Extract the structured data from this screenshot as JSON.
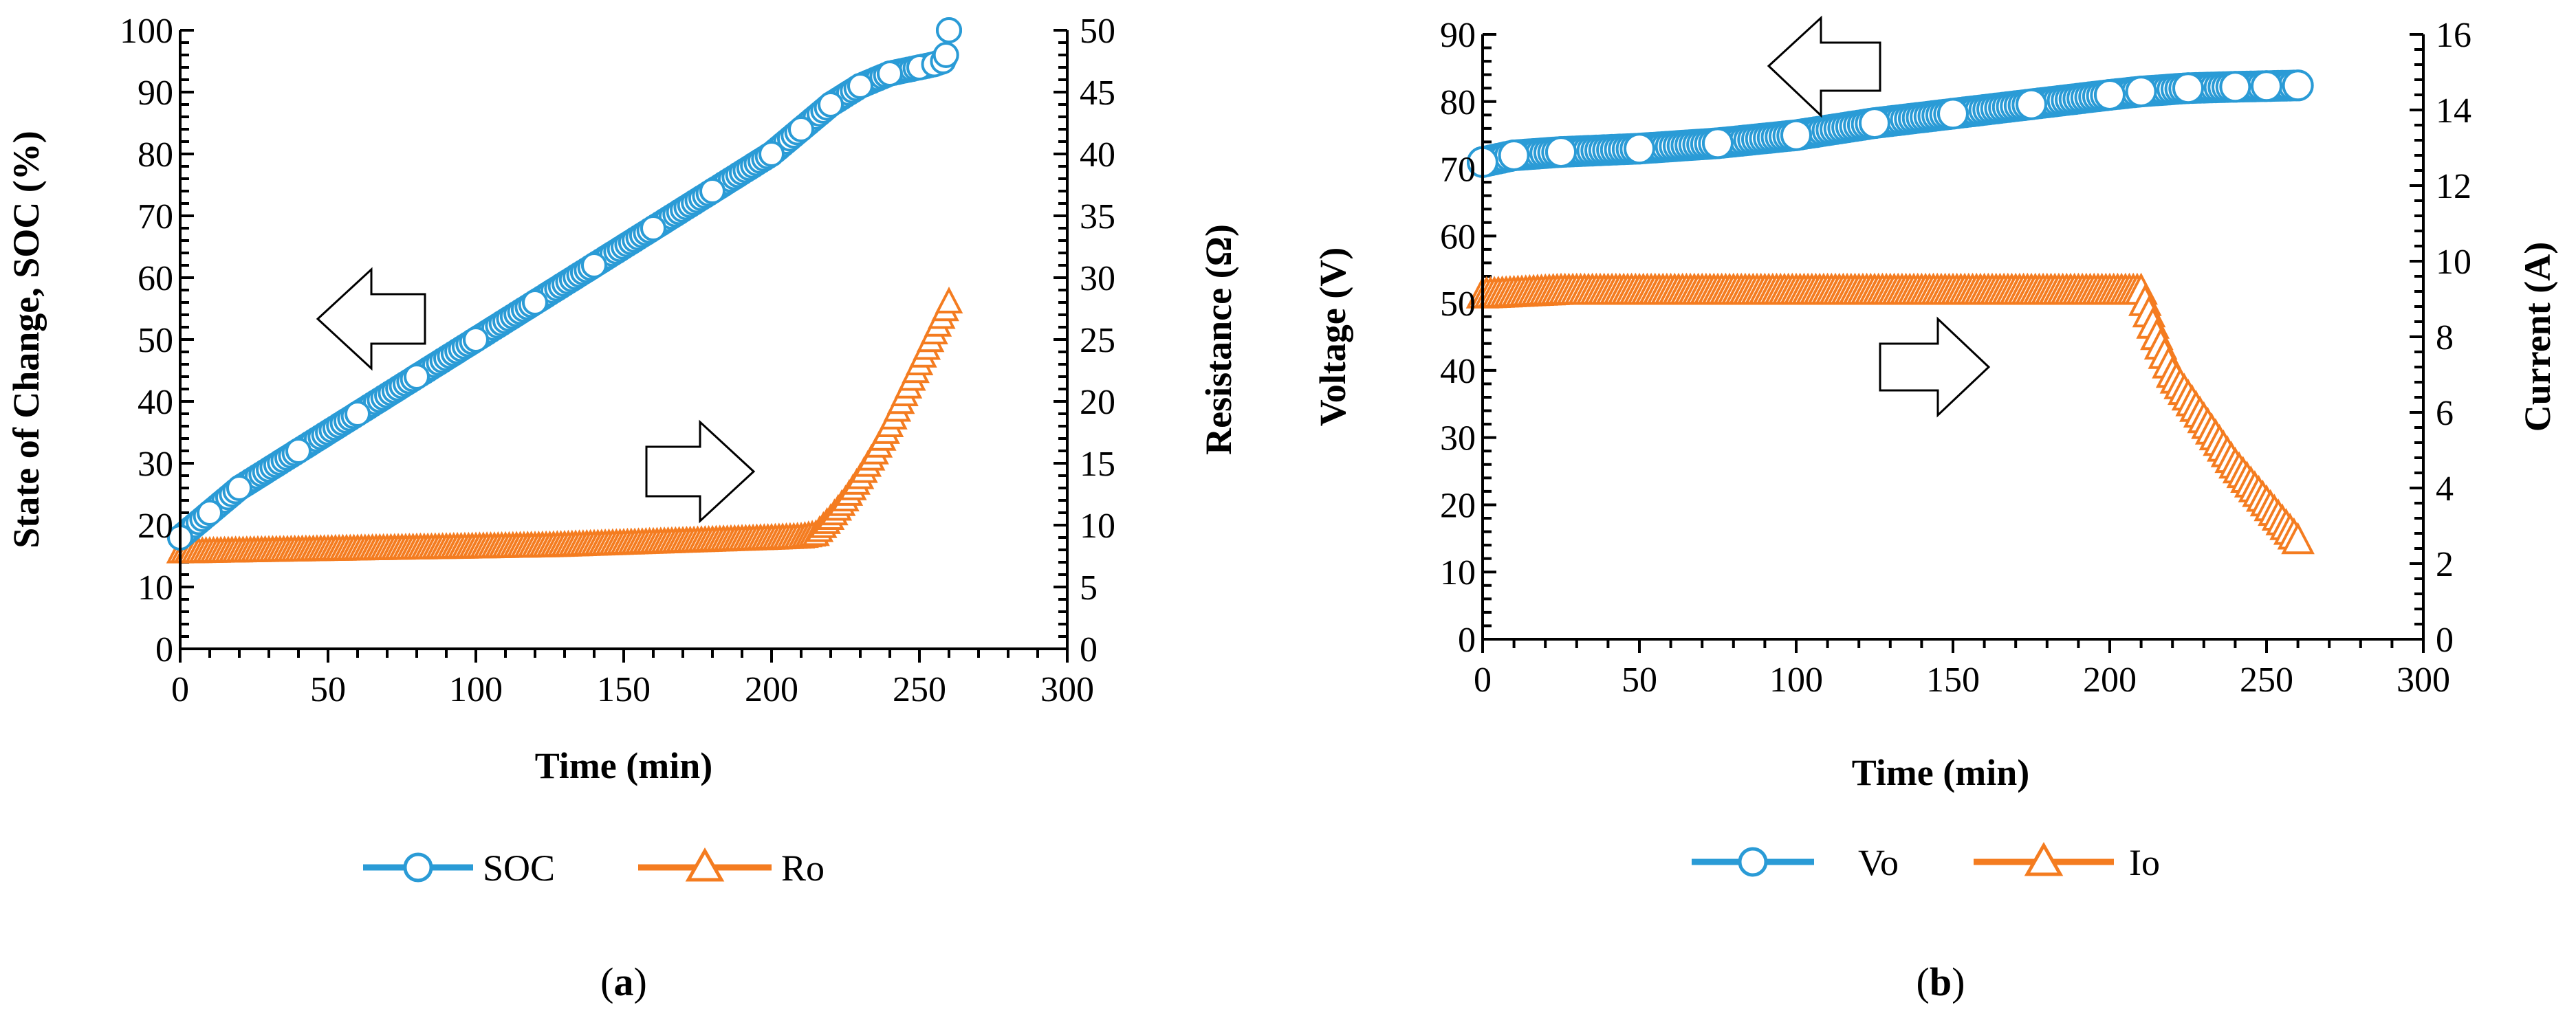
{
  "panels": [
    {
      "label_open": "(",
      "label_letter": "a",
      "label_close": ")",
      "arrow_left_direction": "left",
      "arrow_right_direction": "right"
    },
    {
      "label_open": "(",
      "label_letter": "b",
      "label_close": ")",
      "arrow_left_direction": "left",
      "arrow_right_direction": "right"
    }
  ],
  "colors": {
    "blue": "#2a9bd6",
    "orange": "#f47c20",
    "axis": "#000000"
  },
  "chart_data": [
    {
      "type": "line",
      "title": "",
      "xlabel": "Time (min)",
      "ylabel": "State of Change, SOC (%)",
      "y2label": "Resistance (Ω)",
      "xlim": [
        0,
        300
      ],
      "ylim": [
        0,
        100
      ],
      "y2lim": [
        0,
        50
      ],
      "xticks": [
        "0",
        "50",
        "100",
        "150",
        "200",
        "250",
        "300"
      ],
      "yticks": [
        "0",
        "10",
        "20",
        "30",
        "40",
        "50",
        "60",
        "70",
        "80",
        "90",
        "100"
      ],
      "y2ticks": [
        "0",
        "5",
        "10",
        "15",
        "20",
        "25",
        "30",
        "35",
        "40",
        "45",
        "50"
      ],
      "legend_position": "bottom",
      "series": [
        {
          "name": "SOC",
          "axis": "left",
          "marker": "circle",
          "color": "#2a9bd6",
          "x": [
            0,
            10,
            20,
            40,
            60,
            80,
            100,
            120,
            140,
            160,
            180,
            200,
            210,
            220,
            230,
            240,
            250,
            255,
            258,
            259,
            260
          ],
          "y": [
            18,
            22,
            26,
            32,
            38,
            44,
            50,
            56,
            62,
            68,
            74,
            80,
            84,
            88,
            91,
            93,
            94,
            94.5,
            95,
            96,
            100
          ]
        },
        {
          "name": "Ro",
          "axis": "right",
          "marker": "triangle",
          "color": "#f47c20",
          "x": [
            0,
            25,
            50,
            75,
            100,
            125,
            150,
            175,
            200,
            210,
            215,
            220,
            225,
            230,
            235,
            240,
            245,
            250,
            255,
            260
          ],
          "y": [
            7.8,
            7.9,
            8.0,
            8.1,
            8.2,
            8.3,
            8.5,
            8.7,
            8.9,
            9.0,
            9.2,
            10.5,
            12,
            13.8,
            15.8,
            18,
            20.5,
            23,
            25.5,
            28
          ]
        }
      ]
    },
    {
      "type": "line",
      "title": "",
      "xlabel": "Time (min)",
      "ylabel": "Voltage (V)",
      "y2label": "Current (A)",
      "xlim": [
        0,
        300
      ],
      "ylim": [
        0,
        90
      ],
      "y2lim": [
        0,
        16
      ],
      "xticks": [
        "0",
        "50",
        "100",
        "150",
        "200",
        "250",
        "300"
      ],
      "yticks": [
        "0",
        "10",
        "20",
        "30",
        "40",
        "50",
        "60",
        "70",
        "80",
        "90"
      ],
      "y2ticks": [
        "0",
        "2",
        "4",
        "6",
        "8",
        "10",
        "12",
        "14",
        "16"
      ],
      "legend_position": "bottom",
      "series": [
        {
          "name": "Vo",
          "axis": "left",
          "marker": "circle",
          "color": "#2a9bd6",
          "x": [
            0,
            10,
            25,
            50,
            75,
            100,
            125,
            150,
            175,
            200,
            210,
            225,
            240,
            250,
            260
          ],
          "y": [
            71,
            72,
            72.5,
            73,
            73.8,
            75,
            76.8,
            78.2,
            79.6,
            81.0,
            81.5,
            82,
            82.2,
            82.3,
            82.4
          ]
        },
        {
          "name": "Io",
          "axis": "right",
          "marker": "triangle",
          "color": "#f47c20",
          "x": [
            0,
            25,
            50,
            75,
            100,
            125,
            150,
            175,
            200,
            210,
            215,
            220,
            230,
            240,
            250,
            255,
            260
          ],
          "y": [
            9.1,
            9.2,
            9.2,
            9.2,
            9.2,
            9.2,
            9.2,
            9.2,
            9.2,
            9.2,
            8.0,
            7.0,
            5.8,
            4.6,
            3.6,
            3.1,
            2.6
          ]
        }
      ]
    }
  ]
}
